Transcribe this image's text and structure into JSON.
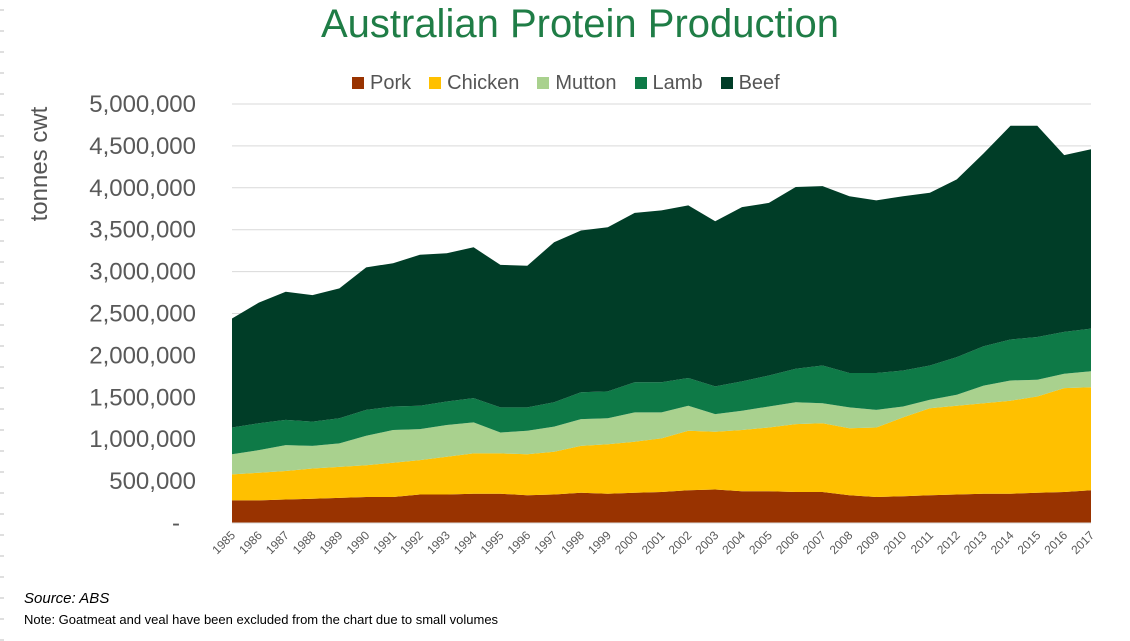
{
  "chart_data": {
    "type": "area",
    "stacked": true,
    "title": "Australian Protein Production",
    "ylabel": "tonnes cwt",
    "ylim": [
      0,
      5000000
    ],
    "yticks": [
      {
        "value": 0,
        "label": "-"
      },
      {
        "value": 500000,
        "label": "500,000"
      },
      {
        "value": 1000000,
        "label": "1,000,000"
      },
      {
        "value": 1500000,
        "label": "1,500,000"
      },
      {
        "value": 2000000,
        "label": "2,000,000"
      },
      {
        "value": 2500000,
        "label": "2,500,000"
      },
      {
        "value": 3000000,
        "label": "3,000,000"
      },
      {
        "value": 3500000,
        "label": "3,500,000"
      },
      {
        "value": 4000000,
        "label": "4,000,000"
      },
      {
        "value": 4500000,
        "label": "4,500,000"
      },
      {
        "value": 5000000,
        "label": "5,000,000"
      }
    ],
    "grid": true,
    "legend_position": "top",
    "categories": [
      "1985",
      "1986",
      "1987",
      "1988",
      "1989",
      "1990",
      "1991",
      "1992",
      "1993",
      "1994",
      "1995",
      "1996",
      "1997",
      "1998",
      "1999",
      "2000",
      "2001",
      "2002",
      "2003",
      "2004",
      "2005",
      "2006",
      "2007",
      "2008",
      "2009",
      "2010",
      "2011",
      "2012",
      "2013",
      "2014",
      "2015",
      "2016",
      "2017"
    ],
    "series": [
      {
        "name": "Pork",
        "color": "#993300",
        "values": [
          270000,
          270000,
          280000,
          290000,
          300000,
          310000,
          310000,
          340000,
          340000,
          350000,
          350000,
          330000,
          340000,
          360000,
          350000,
          360000,
          370000,
          390000,
          400000,
          380000,
          380000,
          370000,
          370000,
          330000,
          310000,
          320000,
          330000,
          340000,
          350000,
          350000,
          360000,
          370000,
          390000
        ]
      },
      {
        "name": "Chicken",
        "color": "#ffc000",
        "values": [
          310000,
          330000,
          340000,
          360000,
          370000,
          380000,
          410000,
          410000,
          450000,
          480000,
          480000,
          490000,
          510000,
          560000,
          590000,
          610000,
          640000,
          710000,
          690000,
          730000,
          760000,
          810000,
          820000,
          800000,
          830000,
          940000,
          1040000,
          1060000,
          1080000,
          1110000,
          1150000,
          1240000,
          1230000
        ]
      },
      {
        "name": "Mutton",
        "color": "#a9d18e",
        "values": [
          240000,
          270000,
          310000,
          270000,
          280000,
          350000,
          390000,
          370000,
          380000,
          370000,
          250000,
          280000,
          300000,
          320000,
          310000,
          350000,
          310000,
          300000,
          210000,
          230000,
          250000,
          260000,
          240000,
          250000,
          210000,
          130000,
          100000,
          130000,
          210000,
          240000,
          200000,
          170000,
          190000
        ]
      },
      {
        "name": "Lamb",
        "color": "#0e7a47",
        "values": [
          320000,
          320000,
          300000,
          290000,
          300000,
          310000,
          280000,
          280000,
          280000,
          290000,
          300000,
          280000,
          290000,
          320000,
          320000,
          360000,
          360000,
          330000,
          330000,
          350000,
          370000,
          400000,
          450000,
          410000,
          440000,
          430000,
          410000,
          450000,
          470000,
          490000,
          510000,
          500000,
          510000
        ]
      },
      {
        "name": "Beef",
        "color": "#003d27",
        "values": [
          1300000,
          1440000,
          1530000,
          1510000,
          1550000,
          1700000,
          1710000,
          1800000,
          1770000,
          1800000,
          1700000,
          1690000,
          1910000,
          1930000,
          1960000,
          2020000,
          2050000,
          2060000,
          1970000,
          2080000,
          2060000,
          2170000,
          2140000,
          2110000,
          2060000,
          2080000,
          2060000,
          2120000,
          2300000,
          2550000,
          2520000,
          2110000,
          2140000
        ]
      }
    ]
  },
  "footer": {
    "source": "Source: ABS",
    "note": "Note: Goatmeat and veal have been excluded from the chart due to small volumes"
  }
}
